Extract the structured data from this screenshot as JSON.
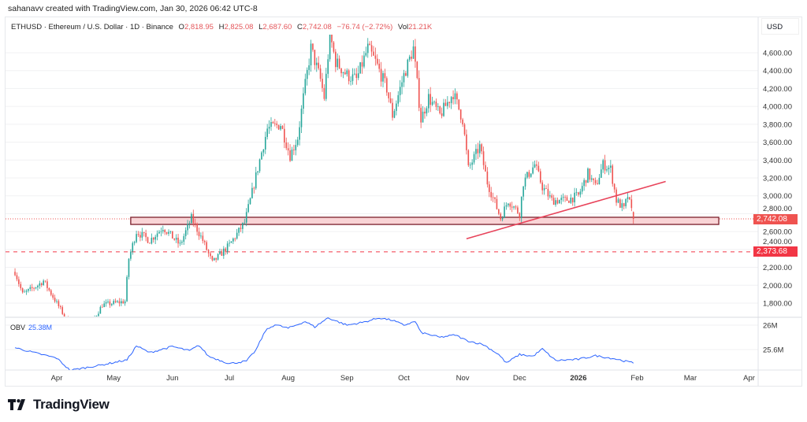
{
  "credit": "sahanavv created with TradingView.com, Jan 30, 2026 06:42 UTC-8",
  "legend": {
    "symbol": "ETHUSD · Ethereum / U.S. Dollar · 1D · Binance",
    "o_label": "O",
    "o": "2,818.95",
    "h_label": "H",
    "h": "2,825.08",
    "l_label": "L",
    "l": "2,687.60",
    "c_label": "C",
    "c": "2,742.08",
    "change": "−76.74 (−2.72%)",
    "vol_label": "Vol",
    "vol": "21.21K"
  },
  "currency": "USD",
  "last_price_tag": "2,742.08",
  "level_tag": "2,373.68",
  "obv": {
    "label": "OBV",
    "value": "25.38M"
  },
  "logo": "TradingView",
  "colors": {
    "up": "#26a69a",
    "down": "#ef5350",
    "obv": "#2962ff",
    "zone_fill": "#f9d4d6",
    "zone_border": "#7b1e2b",
    "trendline": "#e8435a",
    "level": "#f23645"
  },
  "chart_data": [
    {
      "type": "candlestick",
      "title": "ETHUSD · Ethereum / U.S. Dollar · 1D · Binance",
      "ylabel": "USD",
      "ylim": [
        1650,
        4900
      ],
      "y_ticks": [
        "4,600.00",
        "4,400.00",
        "4,200.00",
        "4,000.00",
        "3,800.00",
        "3,600.00",
        "3,400.00",
        "3,200.00",
        "3,000.00",
        "2,800.00",
        "2,600.00",
        "2,400.00",
        "2,200.00",
        "2,000.00",
        "1,800.00"
      ],
      "x_ticks": [
        {
          "label": "Apr",
          "date": "2025-04-01"
        },
        {
          "label": "May",
          "date": "2025-05-01"
        },
        {
          "label": "Jun",
          "date": "2025-06-01"
        },
        {
          "label": "Jul",
          "date": "2025-07-01"
        },
        {
          "label": "Aug",
          "date": "2025-08-01"
        },
        {
          "label": "Sep",
          "date": "2025-09-01"
        },
        {
          "label": "Oct",
          "date": "2025-10-01"
        },
        {
          "label": "Nov",
          "date": "2025-11-01"
        },
        {
          "label": "Dec",
          "date": "2025-12-01"
        },
        {
          "label": "2026",
          "date": "2026-01-01"
        },
        {
          "label": "Feb",
          "date": "2026-02-01"
        },
        {
          "label": "Mar",
          "date": "2026-03-01"
        },
        {
          "label": "Apr",
          "date": "2026-04-01"
        }
      ],
      "close": [
        [
          "2025-03-10",
          2150
        ],
        [
          "2025-03-14",
          1900
        ],
        [
          "2025-03-22",
          2000
        ],
        [
          "2025-03-25",
          2050
        ],
        [
          "2025-04-01",
          1800
        ],
        [
          "2025-04-08",
          1550
        ],
        [
          "2025-04-20",
          1600
        ],
        [
          "2025-04-25",
          1780
        ],
        [
          "2025-05-07",
          1820
        ],
        [
          "2025-05-09",
          2300
        ],
        [
          "2025-05-13",
          2600
        ],
        [
          "2025-05-20",
          2500
        ],
        [
          "2025-05-27",
          2650
        ],
        [
          "2025-06-05",
          2450
        ],
        [
          "2025-06-11",
          2750
        ],
        [
          "2025-06-17",
          2500
        ],
        [
          "2025-06-22",
          2250
        ],
        [
          "2025-07-01",
          2450
        ],
        [
          "2025-07-09",
          2700
        ],
        [
          "2025-07-12",
          2950
        ],
        [
          "2025-07-17",
          3400
        ],
        [
          "2025-07-21",
          3750
        ],
        [
          "2025-07-28",
          3800
        ],
        [
          "2025-08-02",
          3450
        ],
        [
          "2025-08-06",
          3650
        ],
        [
          "2025-08-09",
          4100
        ],
        [
          "2025-08-13",
          4650
        ],
        [
          "2025-08-18",
          4300
        ],
        [
          "2025-08-20",
          4100
        ],
        [
          "2025-08-23",
          4800
        ],
        [
          "2025-08-26",
          4500
        ],
        [
          "2025-09-01",
          4350
        ],
        [
          "2025-09-06",
          4300
        ],
        [
          "2025-09-12",
          4650
        ],
        [
          "2025-09-16",
          4500
        ],
        [
          "2025-09-22",
          4200
        ],
        [
          "2025-09-25",
          3900
        ],
        [
          "2025-10-01",
          4350
        ],
        [
          "2025-10-06",
          4650
        ],
        [
          "2025-10-10",
          3850
        ],
        [
          "2025-10-14",
          4100
        ],
        [
          "2025-10-20",
          3900
        ],
        [
          "2025-10-27",
          4150
        ],
        [
          "2025-11-01",
          3850
        ],
        [
          "2025-11-04",
          3300
        ],
        [
          "2025-11-10",
          3550
        ],
        [
          "2025-11-14",
          3150
        ],
        [
          "2025-11-21",
          2750
        ],
        [
          "2025-11-25",
          2950
        ],
        [
          "2025-12-01",
          2800
        ],
        [
          "2025-12-03",
          3150
        ],
        [
          "2025-12-09",
          3350
        ],
        [
          "2025-12-13",
          3100
        ],
        [
          "2025-12-18",
          2950
        ],
        [
          "2025-12-25",
          2950
        ],
        [
          "2026-01-01",
          3000
        ],
        [
          "2026-01-06",
          3250
        ],
        [
          "2026-01-10",
          3100
        ],
        [
          "2026-01-14",
          3350
        ],
        [
          "2026-01-18",
          3300
        ],
        [
          "2026-01-21",
          2950
        ],
        [
          "2026-01-25",
          2850
        ],
        [
          "2026-01-27",
          3000
        ],
        [
          "2026-01-30",
          2742.08
        ]
      ],
      "last_candle": {
        "date": "2026-01-30",
        "open": 2818.95,
        "high": 2825.08,
        "low": 2687.6,
        "close": 2742.08
      },
      "support_zone": {
        "from": "2025-05-10",
        "to": "2026-03-16",
        "low": 2680,
        "high": 2760
      },
      "trendline": {
        "from": [
          "2025-11-03",
          2520
        ],
        "to": [
          "2026-02-16",
          3160
        ]
      },
      "horizontal_level": 2373.68,
      "last_price": 2742.08
    },
    {
      "type": "line",
      "name": "OBV",
      "ylim": [
        25.2,
        26.15
      ],
      "y_ticks": [
        "26M",
        "25.6M"
      ],
      "points": [
        [
          "2025-03-10",
          25.63
        ],
        [
          "2025-03-20",
          25.55
        ],
        [
          "2025-04-01",
          25.46
        ],
        [
          "2025-04-08",
          25.26
        ],
        [
          "2025-04-25",
          25.35
        ],
        [
          "2025-05-08",
          25.43
        ],
        [
          "2025-05-13",
          25.66
        ],
        [
          "2025-05-20",
          25.55
        ],
        [
          "2025-06-01",
          25.65
        ],
        [
          "2025-06-10",
          25.58
        ],
        [
          "2025-06-15",
          25.67
        ],
        [
          "2025-06-20",
          25.49
        ],
        [
          "2025-07-01",
          25.37
        ],
        [
          "2025-07-10",
          25.41
        ],
        [
          "2025-07-15",
          25.59
        ],
        [
          "2025-07-20",
          25.91
        ],
        [
          "2025-07-25",
          26.01
        ],
        [
          "2025-08-01",
          25.95
        ],
        [
          "2025-08-10",
          26.06
        ],
        [
          "2025-08-15",
          25.97
        ],
        [
          "2025-08-22",
          26.12
        ],
        [
          "2025-09-01",
          26.0
        ],
        [
          "2025-09-10",
          26.05
        ],
        [
          "2025-09-18",
          26.12
        ],
        [
          "2025-09-25",
          26.08
        ],
        [
          "2025-10-01",
          26.0
        ],
        [
          "2025-10-07",
          26.06
        ],
        [
          "2025-10-10",
          25.88
        ],
        [
          "2025-10-20",
          25.8
        ],
        [
          "2025-10-28",
          25.84
        ],
        [
          "2025-11-03",
          25.75
        ],
        [
          "2025-11-12",
          25.68
        ],
        [
          "2025-11-20",
          25.52
        ],
        [
          "2025-11-24",
          25.38
        ],
        [
          "2025-12-01",
          25.52
        ],
        [
          "2025-12-08",
          25.49
        ],
        [
          "2025-12-13",
          25.61
        ],
        [
          "2025-12-20",
          25.42
        ],
        [
          "2026-01-01",
          25.44
        ],
        [
          "2026-01-10",
          25.5
        ],
        [
          "2026-01-20",
          25.45
        ],
        [
          "2026-01-30",
          25.38
        ]
      ]
    }
  ]
}
